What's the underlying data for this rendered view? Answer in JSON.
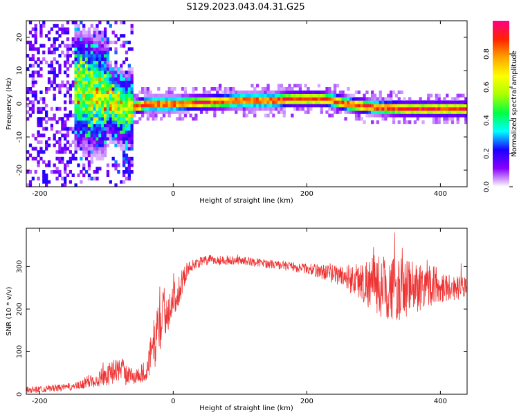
{
  "title": "S129.2023.043.04.31.G25",
  "chart_data": [
    {
      "type": "heatmap",
      "xlabel": "Height of straight line (km)",
      "ylabel": "Frequency (Hz)",
      "xlim": [
        -220,
        440
      ],
      "ylim": [
        -25,
        25
      ],
      "xticks": [
        -200,
        0,
        200,
        400
      ],
      "yticks": [
        -20,
        -10,
        0,
        10,
        20
      ],
      "colorbar": {
        "label": "Normalized spectral amplitude",
        "range": [
          0,
          1
        ],
        "ticks": [
          "0.0",
          "0.2",
          "0.4",
          "0.6",
          "0.8"
        ],
        "colors": [
          "#ffffff",
          "#8800ff",
          "#1a00ff",
          "#00ffff",
          "#00ff44",
          "#aaff00",
          "#ffff00",
          "#ffa500",
          "#ff2200",
          "#ff0088"
        ]
      },
      "ridge": {
        "x": [
          -150,
          -120,
          -100,
          -90,
          -80,
          -70,
          -60,
          -40,
          0,
          50,
          100,
          150,
          180,
          200,
          220,
          240,
          260,
          280,
          300,
          350,
          400,
          440
        ],
        "freq": [
          5,
          3,
          2,
          0,
          -1,
          -2,
          -1,
          0,
          0,
          0.5,
          1,
          1,
          1.5,
          1.5,
          1.5,
          1,
          0,
          -0.5,
          -1,
          -1.5,
          -1.5,
          -1.5
        ]
      }
    },
    {
      "type": "line",
      "xlabel": "Height of straight line (km)",
      "ylabel": "SNR (10 * v/v)",
      "xlim": [
        -220,
        440
      ],
      "ylim": [
        0,
        390
      ],
      "xticks": [
        -200,
        0,
        200,
        400
      ],
      "yticks": [
        0,
        100,
        200,
        300
      ],
      "color": "#ee3333",
      "x": [
        -220,
        -200,
        -170,
        -140,
        -120,
        -100,
        -80,
        -60,
        -40,
        -30,
        -20,
        -10,
        0,
        10,
        20,
        30,
        50,
        100,
        150,
        200,
        250,
        280,
        300,
        320,
        340,
        360,
        380,
        400,
        420,
        440
      ],
      "y": [
        10,
        12,
        15,
        20,
        35,
        45,
        60,
        40,
        55,
        110,
        170,
        200,
        220,
        250,
        290,
        305,
        315,
        315,
        305,
        295,
        280,
        265,
        260,
        250,
        245,
        250,
        260,
        255,
        250,
        250
      ],
      "spread": [
        8,
        8,
        8,
        10,
        20,
        25,
        30,
        20,
        25,
        60,
        70,
        60,
        40,
        35,
        20,
        12,
        12,
        10,
        10,
        12,
        25,
        45,
        70,
        75,
        75,
        65,
        55,
        40,
        30,
        25
      ]
    }
  ]
}
